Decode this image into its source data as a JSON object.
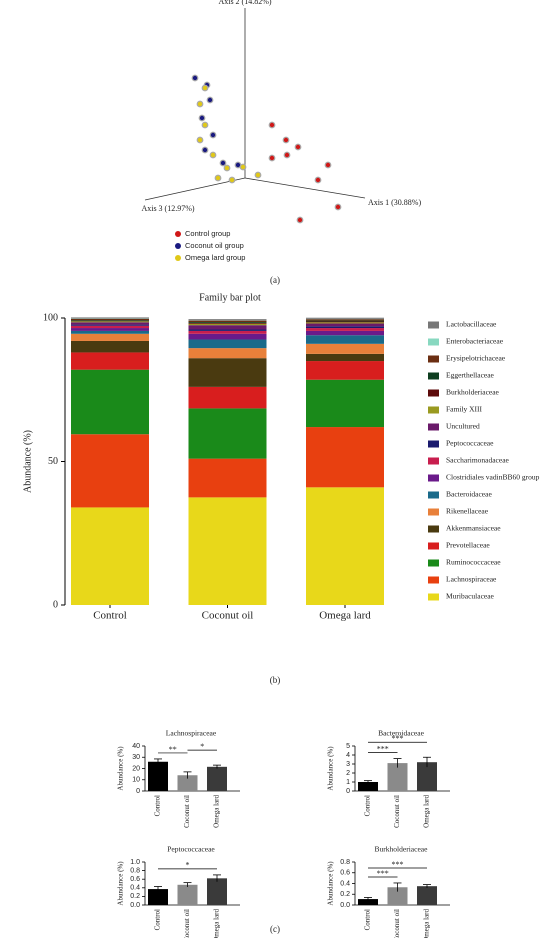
{
  "panel_labels": [
    "(a)",
    "(b)",
    "(c)"
  ],
  "chart_data": [
    {
      "type": "scatter3d",
      "axis_labels": [
        "Axis 1 (30.88%)",
        "Axis 2 (14.82%)",
        "Axis 3 (12.97%)"
      ],
      "xlim": [
        -1.3,
        1.3
      ],
      "ylim": [
        -0.5,
        1.8
      ],
      "series": [
        {
          "name": "Control group",
          "color": "#d01818",
          "x": [
            0.27,
            0.41,
            0.53,
            0.42,
            0.27,
            0.83,
            0.73,
            0.93,
            0.55
          ],
          "y": [
            0.53,
            0.38,
            0.31,
            0.23,
            0.2,
            0.13,
            -0.02,
            -0.29,
            -0.42
          ]
        },
        {
          "name": "Coconut oil group",
          "color": "#1a1a80",
          "x": [
            -0.5,
            -0.38,
            -0.35,
            -0.43,
            -0.32,
            -0.4,
            -0.22,
            -0.07
          ],
          "y": [
            1.0,
            0.93,
            0.78,
            0.6,
            0.43,
            0.28,
            0.15,
            0.13
          ]
        },
        {
          "name": "Omega lard group",
          "color": "#e0c818",
          "x": [
            -0.4,
            -0.45,
            -0.4,
            -0.45,
            -0.32,
            -0.18,
            -0.02,
            -0.27,
            -0.13,
            0.13
          ],
          "y": [
            0.9,
            0.74,
            0.53,
            0.38,
            0.23,
            0.1,
            0.11,
            0,
            -0.02,
            0.03
          ]
        }
      ]
    },
    {
      "type": "stacked_bar",
      "title": "Family bar plot",
      "ylabel": "Abundance (%)",
      "categories": [
        "Control",
        "Coconut oil",
        "Omega lard"
      ],
      "ylim": [
        0,
        100
      ],
      "yticks": [
        0,
        50,
        100
      ],
      "series": [
        {
          "name": "Lactobacillaceae",
          "color": "#777777",
          "values": [
            0.4,
            0.4,
            0.4
          ]
        },
        {
          "name": "Enterobacteriaceae",
          "color": "#88d8c0",
          "values": [
            0.1,
            0.1,
            0.1
          ]
        },
        {
          "name": "Erysipelotrichaceae",
          "color": "#6b2e12",
          "values": [
            0.5,
            0.5,
            0.5
          ]
        },
        {
          "name": "Eggerthellaceae",
          "color": "#0d3d1f",
          "values": [
            0.3,
            0.3,
            0.3
          ]
        },
        {
          "name": "Burkholderiaceae",
          "color": "#5c0a0a",
          "values": [
            0.1,
            0.3,
            0.3
          ]
        },
        {
          "name": "Family XIII",
          "color": "#9a9a20",
          "values": [
            0.3,
            0.5,
            0.4
          ]
        },
        {
          "name": "Uncultured",
          "color": "#6a1a6a",
          "values": [
            0.8,
            1.5,
            1.0
          ]
        },
        {
          "name": "Peptococcaceae",
          "color": "#1a1a6e",
          "values": [
            0.4,
            0.5,
            0.6
          ]
        },
        {
          "name": "Saccharimonadaceae",
          "color": "#c81e4e",
          "values": [
            0.8,
            1.0,
            1.0
          ]
        },
        {
          "name": "Clostridiales vadinBB60 group",
          "color": "#6a1a8a",
          "values": [
            1.0,
            2.0,
            1.5
          ]
        },
        {
          "name": "Bacteroidaceae",
          "color": "#1a6a8a",
          "values": [
            1.0,
            3.0,
            3.0
          ]
        },
        {
          "name": "Rikenellaceae",
          "color": "#e8803a",
          "values": [
            2.5,
            3.5,
            3.5
          ]
        },
        {
          "name": "Akkenmansiaceae",
          "color": "#4a3a10",
          "values": [
            4.0,
            10.0,
            2.5
          ]
        },
        {
          "name": "Prevotellaceae",
          "color": "#d81e1e",
          "values": [
            6.0,
            7.5,
            6.5
          ]
        },
        {
          "name": "Ruminococcaceae",
          "color": "#1a8a1a",
          "values": [
            22.5,
            17.5,
            16.5
          ]
        },
        {
          "name": "Lachnospiraceae",
          "color": "#e84010",
          "values": [
            25.5,
            13.5,
            21.0
          ]
        },
        {
          "name": "Muribaculaceae",
          "color": "#e8d81a",
          "values": [
            34.0,
            37.5,
            41.0
          ]
        }
      ]
    },
    {
      "type": "bar_err",
      "title": "Lachnospiraceae",
      "ylabel": "Abundance (%)",
      "categories": [
        "Control",
        "Coconut oil",
        "Omega lard"
      ],
      "colors": [
        "#000000",
        "#8a8a8a",
        "#3a3a3a"
      ],
      "values": [
        26,
        14,
        21.5
      ],
      "errors": [
        2.5,
        3,
        1.5
      ],
      "ylim": [
        0,
        40
      ],
      "yticks": [
        0,
        10,
        20,
        30,
        40
      ],
      "annotations": [
        {
          "text": "**",
          "between": [
            "Control",
            "Coconut oil"
          ]
        },
        {
          "text": "*",
          "between": [
            "Coconut oil",
            "Omega lard"
          ]
        }
      ]
    },
    {
      "type": "bar_err",
      "title": "Bacteroidaceae",
      "ylabel": "Abundance (%)",
      "categories": [
        "Control",
        "Coconut oil",
        "Omega lard"
      ],
      "colors": [
        "#000000",
        "#8a8a8a",
        "#3a3a3a"
      ],
      "values": [
        1.0,
        3.1,
        3.2
      ],
      "errors": [
        0.15,
        0.5,
        0.55
      ],
      "ylim": [
        0,
        5
      ],
      "yticks": [
        0,
        1,
        2,
        3,
        4,
        5
      ],
      "annotations": [
        {
          "text": "***",
          "between": [
            "Control",
            "Coconut oil"
          ]
        },
        {
          "text": "***",
          "between": [
            "Control",
            "Omega lard"
          ]
        }
      ]
    },
    {
      "type": "bar_err",
      "title": "Peptococcaceae",
      "ylabel": "Abundance (%)",
      "categories": [
        "Control",
        "Coconut oil",
        "Omega lard"
      ],
      "colors": [
        "#000000",
        "#8a8a8a",
        "#3a3a3a"
      ],
      "values": [
        0.37,
        0.47,
        0.62
      ],
      "errors": [
        0.06,
        0.05,
        0.08
      ],
      "ylim": [
        0,
        1
      ],
      "yticks": [
        {
          "value": 0,
          "label": "0.0"
        },
        0.2,
        0.4,
        0.6,
        0.8,
        {
          "value": 1,
          "label": "1.0"
        }
      ],
      "annotations": [
        {
          "text": "*",
          "between": [
            "Control",
            "Omega lard"
          ]
        }
      ]
    },
    {
      "type": "bar_err",
      "title": "Burkholderiaceae",
      "ylabel": "Abundance (%)",
      "categories": [
        "Control",
        "Coconut oil",
        "Omega lard"
      ],
      "colors": [
        "#000000",
        "#8a8a8a",
        "#3a3a3a"
      ],
      "values": [
        0.11,
        0.33,
        0.35
      ],
      "errors": [
        0.03,
        0.08,
        0.03
      ],
      "ylim": [
        0,
        0.8
      ],
      "yticks": [
        {
          "value": 0,
          "label": "0.0"
        },
        0.2,
        0.4,
        0.6,
        0.8
      ],
      "annotations": [
        {
          "text": "***",
          "between": [
            "Control",
            "Coconut oil"
          ]
        },
        {
          "text": "***",
          "between": [
            "Control",
            "Omega lard"
          ]
        }
      ]
    }
  ]
}
